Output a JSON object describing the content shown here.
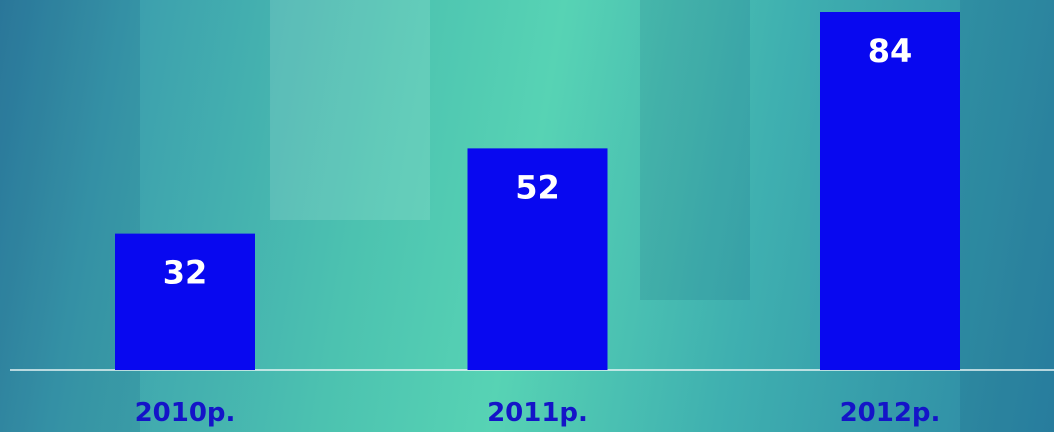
{
  "chart_data": {
    "type": "bar",
    "categories": [
      "2010р.",
      "2011р.",
      "2012р."
    ],
    "values": [
      32,
      52,
      84
    ],
    "color": "#0808f0"
  }
}
